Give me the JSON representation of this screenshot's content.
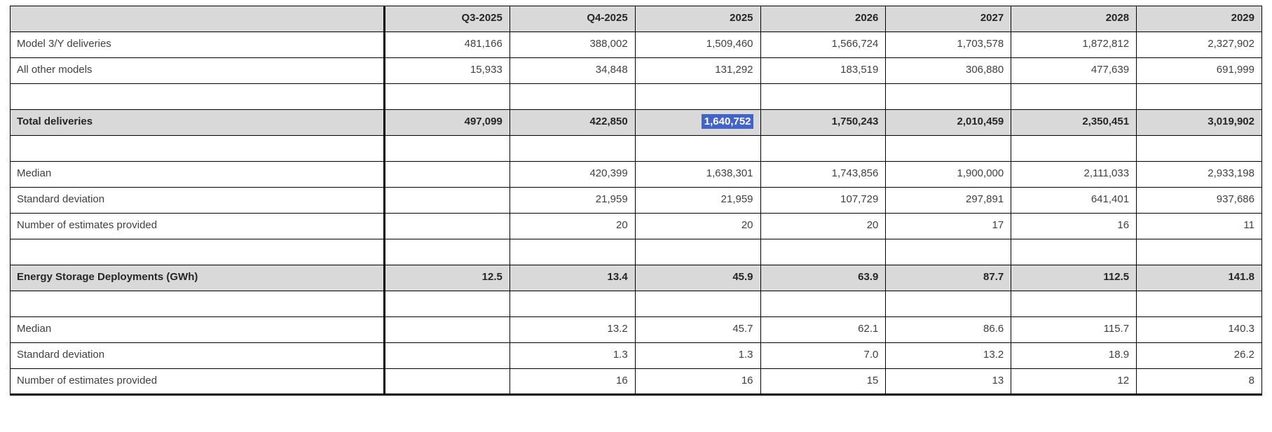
{
  "table": {
    "columns": [
      "",
      "Q3-2025",
      "Q4-2025",
      "2025",
      "2026",
      "2027",
      "2028",
      "2029"
    ],
    "rows": [
      {
        "label": "Model 3/Y deliveries",
        "style": "normal",
        "values": [
          "481,166",
          "388,002",
          "1,509,460",
          "1,566,724",
          "1,703,578",
          "1,872,812",
          "2,327,902"
        ]
      },
      {
        "label": "All other models",
        "style": "normal",
        "values": [
          "15,933",
          "34,848",
          "131,292",
          "183,519",
          "306,880",
          "477,639",
          "691,999"
        ]
      },
      {
        "label": "",
        "style": "spacer",
        "values": [
          "",
          "",
          "",
          "",
          "",
          "",
          ""
        ]
      },
      {
        "label": "Total deliveries",
        "style": "section",
        "highlight_col": 2,
        "values": [
          "497,099",
          "422,850",
          "1,640,752",
          "1,750,243",
          "2,010,459",
          "2,350,451",
          "3,019,902"
        ]
      },
      {
        "label": "",
        "style": "spacer",
        "values": [
          "",
          "",
          "",
          "",
          "",
          "",
          ""
        ]
      },
      {
        "label": "Median",
        "style": "normal",
        "values": [
          "",
          "420,399",
          "1,638,301",
          "1,743,856",
          "1,900,000",
          "2,111,033",
          "2,933,198"
        ]
      },
      {
        "label": "Standard deviation",
        "style": "normal",
        "values": [
          "",
          "21,959",
          "21,959",
          "107,729",
          "297,891",
          "641,401",
          "937,686"
        ]
      },
      {
        "label": "Number of estimates provided",
        "style": "normal",
        "values": [
          "",
          "20",
          "20",
          "20",
          "17",
          "16",
          "11"
        ]
      },
      {
        "label": "",
        "style": "spacer",
        "values": [
          "",
          "",
          "",
          "",
          "",
          "",
          ""
        ]
      },
      {
        "label": "Energy Storage Deployments (GWh)",
        "style": "section",
        "values": [
          "12.5",
          "13.4",
          "45.9",
          "63.9",
          "87.7",
          "112.5",
          "141.8"
        ]
      },
      {
        "label": "",
        "style": "spacer",
        "values": [
          "",
          "",
          "",
          "",
          "",
          "",
          ""
        ]
      },
      {
        "label": "Median",
        "style": "normal",
        "values": [
          "",
          "13.2",
          "45.7",
          "62.1",
          "86.6",
          "115.7",
          "140.3"
        ]
      },
      {
        "label": "Standard deviation",
        "style": "normal",
        "values": [
          "",
          "1.3",
          "1.3",
          "7.0",
          "13.2",
          "18.9",
          "26.2"
        ]
      },
      {
        "label": "Number of estimates provided",
        "style": "normal",
        "values": [
          "",
          "16",
          "16",
          "15",
          "13",
          "12",
          "8"
        ]
      }
    ],
    "colors": {
      "section_background": "#d9d9d9",
      "header_background": "#d9d9d9",
      "selection_highlight": "#4263c7",
      "border": "#000000"
    },
    "selected_value": "1,640,752"
  },
  "chart_data": {
    "type": "table",
    "title": "",
    "columns": [
      "Q3-2025",
      "Q4-2025",
      "2025",
      "2026",
      "2027",
      "2028",
      "2029"
    ],
    "rows": [
      {
        "label": "Model 3/Y deliveries",
        "values": [
          481166,
          388002,
          1509460,
          1566724,
          1703578,
          1872812,
          2327902
        ]
      },
      {
        "label": "All other models",
        "values": [
          15933,
          34848,
          131292,
          183519,
          306880,
          477639,
          691999
        ]
      },
      {
        "label": "Total deliveries",
        "values": [
          497099,
          422850,
          1640752,
          1750243,
          2010459,
          2350451,
          3019902
        ]
      },
      {
        "label": "Median (deliveries)",
        "values": [
          null,
          420399,
          1638301,
          1743856,
          1900000,
          2111033,
          2933198
        ]
      },
      {
        "label": "Standard deviation (deliveries)",
        "values": [
          null,
          21959,
          21959,
          107729,
          297891,
          641401,
          937686
        ]
      },
      {
        "label": "Number of estimates provided (deliveries)",
        "values": [
          null,
          20,
          20,
          20,
          17,
          16,
          11
        ]
      },
      {
        "label": "Energy Storage Deployments (GWh)",
        "values": [
          12.5,
          13.4,
          45.9,
          63.9,
          87.7,
          112.5,
          141.8
        ]
      },
      {
        "label": "Median (GWh)",
        "values": [
          null,
          13.2,
          45.7,
          62.1,
          86.6,
          115.7,
          140.3
        ]
      },
      {
        "label": "Standard deviation (GWh)",
        "values": [
          null,
          1.3,
          1.3,
          7.0,
          13.2,
          18.9,
          26.2
        ]
      },
      {
        "label": "Number of estimates provided (GWh)",
        "values": [
          null,
          16,
          16,
          15,
          13,
          12,
          8
        ]
      }
    ],
    "notes": "Cell Total deliveries / 2025 (1,640,752) is shown with a blue text-selection highlight"
  }
}
